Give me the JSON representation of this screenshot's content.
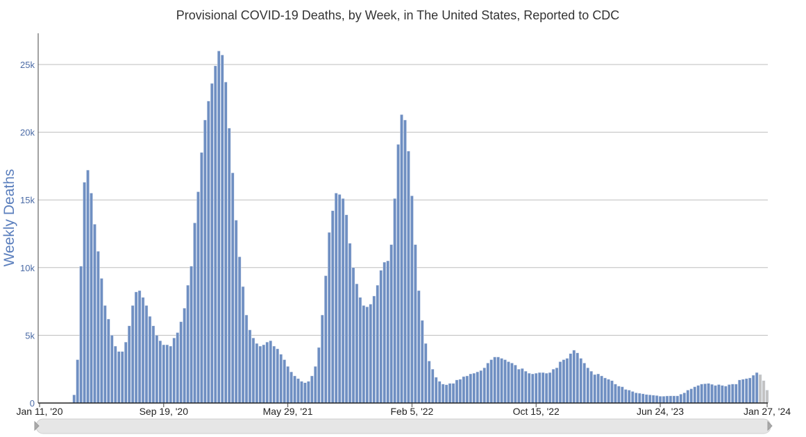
{
  "chart_data": {
    "type": "bar",
    "title": "Provisional COVID-19 Deaths, by Week, in The United States, Reported to CDC",
    "xlabel": "",
    "ylabel": "Weekly Deaths",
    "ylim": [
      0,
      27000
    ],
    "yticks": [
      {
        "value": 0,
        "label": "0"
      },
      {
        "value": 5000,
        "label": "5k"
      },
      {
        "value": 10000,
        "label": "10k"
      },
      {
        "value": 15000,
        "label": "15k"
      },
      {
        "value": 20000,
        "label": "20k"
      },
      {
        "value": 25000,
        "label": "25k"
      }
    ],
    "xticks": [
      {
        "week": 0,
        "label": "Jan 11, '20"
      },
      {
        "week": 36,
        "label": "Sep 19, '20"
      },
      {
        "week": 72,
        "label": "May 29, '21"
      },
      {
        "week": 108,
        "label": "Feb 5, '22"
      },
      {
        "week": 144,
        "label": "Oct 15, '22"
      },
      {
        "week": 180,
        "label": "Jun 24, '23"
      },
      {
        "week": 211,
        "label": "Jan 27, '24"
      }
    ],
    "grid": true,
    "colors": {
      "reported": "#6f8fc2",
      "incomplete": "#c2c2c2",
      "grid": "#bdbdbd"
    },
    "incomplete_last_n": 3,
    "values": [
      0,
      0,
      0,
      0,
      0,
      0,
      0,
      0,
      20,
      40,
      600,
      3200,
      10100,
      16300,
      17200,
      15500,
      13200,
      11200,
      9200,
      7200,
      6200,
      5000,
      4200,
      3800,
      3800,
      4500,
      5700,
      7200,
      8200,
      8300,
      7800,
      7200,
      6400,
      5700,
      5000,
      4600,
      4300,
      4300,
      4200,
      4800,
      5200,
      6000,
      7000,
      8700,
      10100,
      13300,
      15600,
      18500,
      20900,
      22300,
      23600,
      24900,
      26000,
      25700,
      23700,
      20300,
      17000,
      13500,
      10800,
      8600,
      6500,
      5400,
      4800,
      4400,
      4200,
      4300,
      4500,
      4600,
      4200,
      4000,
      3600,
      3200,
      2700,
      2300,
      2000,
      1800,
      1600,
      1500,
      1600,
      2000,
      2700,
      4100,
      6500,
      9400,
      12600,
      14200,
      15500,
      15400,
      15100,
      13900,
      11800,
      10000,
      8800,
      7800,
      7200,
      7100,
      7300,
      7900,
      8700,
      9800,
      10400,
      10500,
      11700,
      15100,
      19100,
      21300,
      20900,
      18600,
      15300,
      11700,
      8300,
      6100,
      4400,
      3100,
      2500,
      1900,
      1600,
      1400,
      1350,
      1450,
      1450,
      1700,
      1750,
      1950,
      2000,
      2150,
      2200,
      2300,
      2400,
      2600,
      2950,
      3200,
      3400,
      3400,
      3300,
      3200,
      3050,
      2950,
      2800,
      2500,
      2550,
      2350,
      2200,
      2150,
      2200,
      2250,
      2250,
      2200,
      2250,
      2500,
      2600,
      3050,
      3200,
      3300,
      3650,
      3900,
      3700,
      3300,
      2950,
      2600,
      2350,
      2100,
      2150,
      2000,
      1850,
      1750,
      1650,
      1400,
      1250,
      1200,
      1000,
      950,
      850,
      750,
      720,
      680,
      630,
      600,
      580,
      550,
      500,
      500,
      520,
      530,
      530,
      530,
      650,
      750,
      950,
      1050,
      1200,
      1300,
      1400,
      1420,
      1450,
      1380,
      1300,
      1360,
      1300,
      1250,
      1360,
      1400,
      1400,
      1700,
      1750,
      1800,
      1850,
      2050,
      2250,
      2100,
      1650,
      950
    ]
  }
}
